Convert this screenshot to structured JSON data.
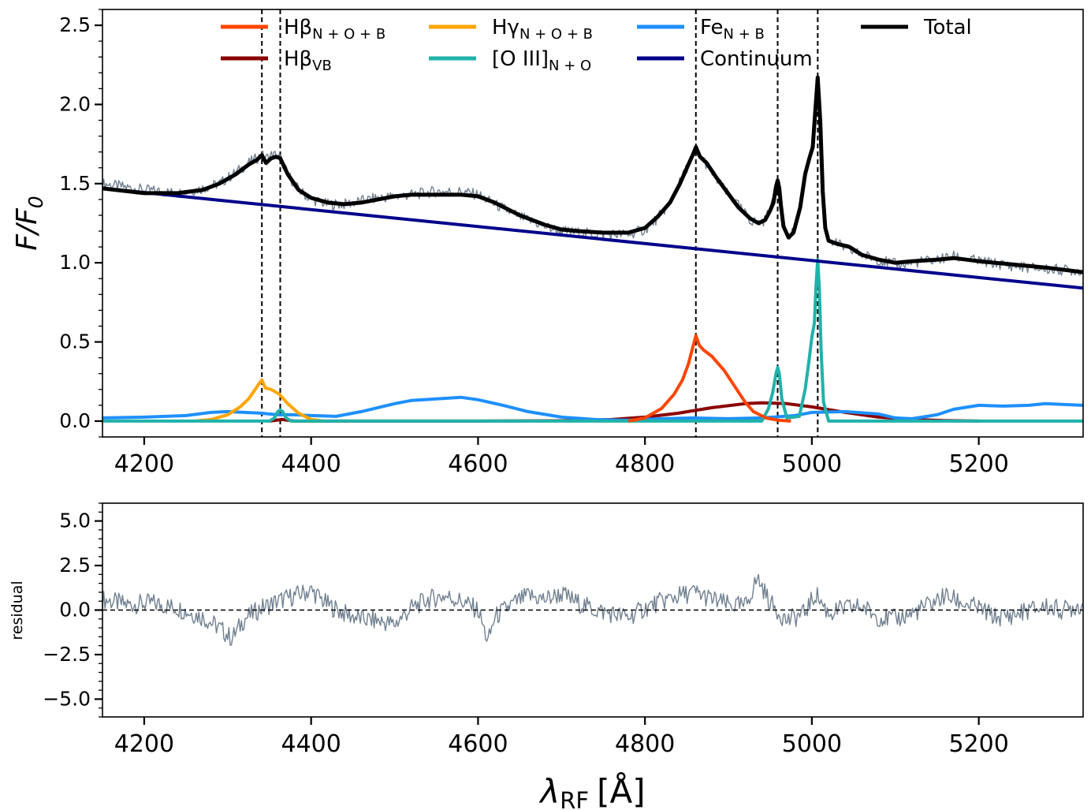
{
  "chart_data": [
    {
      "type": "line",
      "xlabel_main": "λ",
      "xlabel_sub": "RF",
      "xlabel_unit": "[Å]",
      "ylabel_main": "F/F",
      "ylabel_sub": "0",
      "xlim": [
        4150,
        5325
      ],
      "ylim": [
        -0.1,
        2.6
      ],
      "xticks": [
        4200,
        4400,
        4600,
        4800,
        5000,
        5200
      ],
      "yticks": [
        0.0,
        0.5,
        1.0,
        1.5,
        2.0,
        2.5
      ],
      "ytick_labels": [
        "0.0",
        "0.5",
        "1.0",
        "1.5",
        "2.0",
        "2.5"
      ],
      "grid": false,
      "legend_placement": "top",
      "vlines": [
        4341,
        4363,
        4861,
        4959,
        5007
      ],
      "series": [
        {
          "key": "hb_nob",
          "name": "Hβ",
          "name_sub": "N + O + B",
          "color": "#ff4500",
          "x": [
            4780,
            4800,
            4820,
            4835,
            4845,
            4852,
            4857,
            4861,
            4865,
            4870,
            4880,
            4895,
            4910,
            4920,
            4930,
            4945,
            4960,
            4975
          ],
          "y": [
            0.0,
            0.02,
            0.08,
            0.17,
            0.26,
            0.36,
            0.46,
            0.54,
            0.48,
            0.45,
            0.41,
            0.32,
            0.2,
            0.12,
            0.06,
            0.02,
            0.005,
            0.0
          ]
        },
        {
          "key": "hb_vb",
          "name": "Hβ",
          "name_sub": "VB",
          "color": "#8b0000",
          "x": [
            4350,
            4365,
            4380,
            4600,
            4700,
            4760,
            4800,
            4840,
            4880,
            4920,
            4940,
            4970,
            5000,
            5040,
            5080,
            5120,
            5160,
            5200
          ],
          "y": [
            0.0,
            0.01,
            0.0,
            0.0,
            0.002,
            0.01,
            0.025,
            0.05,
            0.085,
            0.11,
            0.115,
            0.11,
            0.09,
            0.055,
            0.025,
            0.01,
            0.003,
            0.0
          ]
        },
        {
          "key": "hg_nob",
          "name": "Hγ",
          "name_sub": "N + O + B",
          "color": "#ffa500",
          "x": [
            4260,
            4280,
            4300,
            4315,
            4325,
            4333,
            4338,
            4341,
            4345,
            4352,
            4362,
            4372,
            4385,
            4400,
            4415
          ],
          "y": [
            0.0,
            0.01,
            0.04,
            0.09,
            0.14,
            0.2,
            0.24,
            0.26,
            0.21,
            0.2,
            0.17,
            0.11,
            0.05,
            0.01,
            0.0
          ]
        },
        {
          "key": "oiii",
          "name": "[O III]",
          "name_sub": "N + O",
          "color": "#20b2aa",
          "x": [
            4150,
            4350,
            4356,
            4360,
            4363,
            4366,
            4370,
            4376,
            4940,
            4948,
            4953,
            4957,
            4959,
            4961,
            4964,
            4970,
            4985,
            4992,
            4996,
            5000,
            5003,
            5005,
            5007,
            5009,
            5011,
            5014,
            5020,
            5325
          ],
          "y": [
            0.0,
            0.0,
            0.02,
            0.06,
            0.07,
            0.06,
            0.02,
            0.0,
            0.0,
            0.08,
            0.18,
            0.3,
            0.34,
            0.3,
            0.14,
            0.02,
            0.03,
            0.2,
            0.36,
            0.53,
            0.62,
            0.86,
            1.02,
            0.84,
            0.45,
            0.12,
            0.0,
            0.0
          ]
        },
        {
          "key": "fe",
          "name": "Fe",
          "name_sub": "N + B",
          "color": "#1e90ff",
          "x": [
            4150,
            4200,
            4250,
            4280,
            4300,
            4320,
            4340,
            4360,
            4380,
            4400,
            4430,
            4460,
            4500,
            4520,
            4550,
            4580,
            4600,
            4630,
            4660,
            4700,
            4740,
            4780,
            4820,
            4860,
            4900,
            4940,
            4980,
            5000,
            5040,
            5080,
            5100,
            5120,
            5150,
            5170,
            5200,
            5230,
            5260,
            5280,
            5300,
            5325
          ],
          "y": [
            0.02,
            0.025,
            0.035,
            0.055,
            0.06,
            0.055,
            0.05,
            0.04,
            0.04,
            0.035,
            0.03,
            0.06,
            0.11,
            0.13,
            0.14,
            0.15,
            0.135,
            0.1,
            0.06,
            0.025,
            0.01,
            0.005,
            0.015,
            0.02,
            0.015,
            0.02,
            0.035,
            0.055,
            0.06,
            0.045,
            0.02,
            0.015,
            0.04,
            0.075,
            0.1,
            0.095,
            0.1,
            0.11,
            0.105,
            0.1
          ]
        },
        {
          "key": "continuum",
          "name": "Continuum",
          "color": "#00008b",
          "x": [
            4150,
            5325
          ],
          "y": [
            1.47,
            0.84
          ]
        },
        {
          "key": "total",
          "name": "Total",
          "color": "#000000",
          "x": [
            4150,
            4200,
            4240,
            4270,
            4290,
            4310,
            4325,
            4335,
            4341,
            4346,
            4352,
            4358,
            4363,
            4372,
            4385,
            4400,
            4420,
            4440,
            4460,
            4480,
            4500,
            4520,
            4550,
            4580,
            4600,
            4620,
            4650,
            4680,
            4700,
            4720,
            4750,
            4780,
            4800,
            4815,
            4830,
            4842,
            4852,
            4858,
            4861,
            4866,
            4874,
            4884,
            4898,
            4912,
            4926,
            4936,
            4944,
            4950,
            4954,
            4957,
            4959,
            4961,
            4963,
            4966,
            4972,
            4978,
            4986,
            4992,
            4997,
            5001,
            5004,
            5007,
            5010,
            5013,
            5016,
            5020,
            5030,
            5045,
            5060,
            5080,
            5100,
            5120,
            5150,
            5170,
            5200,
            5240,
            5280,
            5325
          ],
          "y": [
            1.47,
            1.44,
            1.44,
            1.46,
            1.5,
            1.56,
            1.62,
            1.65,
            1.68,
            1.63,
            1.66,
            1.67,
            1.66,
            1.56,
            1.46,
            1.41,
            1.38,
            1.37,
            1.38,
            1.4,
            1.42,
            1.43,
            1.43,
            1.43,
            1.42,
            1.38,
            1.3,
            1.24,
            1.21,
            1.2,
            1.19,
            1.19,
            1.22,
            1.29,
            1.38,
            1.5,
            1.62,
            1.69,
            1.73,
            1.67,
            1.63,
            1.55,
            1.45,
            1.35,
            1.28,
            1.25,
            1.27,
            1.33,
            1.38,
            1.48,
            1.52,
            1.47,
            1.36,
            1.23,
            1.16,
            1.19,
            1.35,
            1.56,
            1.66,
            1.73,
            1.95,
            2.17,
            1.9,
            1.45,
            1.22,
            1.14,
            1.12,
            1.1,
            1.05,
            1.02,
            1.0,
            1.01,
            1.02,
            1.03,
            1.01,
            0.99,
            0.97,
            0.94
          ]
        },
        {
          "key": "data",
          "name": "",
          "color": "#708090",
          "x": [
            4150,
            4200,
            4240,
            4270,
            4290,
            4310,
            4325,
            4335,
            4341,
            4346,
            4352,
            4358,
            4363,
            4372,
            4385,
            4400,
            4420,
            4440,
            4460,
            4480,
            4500,
            4520,
            4550,
            4580,
            4600,
            4620,
            4650,
            4680,
            4700,
            4720,
            4750,
            4780,
            4800,
            4815,
            4830,
            4842,
            4852,
            4858,
            4861,
            4866,
            4874,
            4884,
            4898,
            4912,
            4926,
            4936,
            4944,
            4950,
            4954,
            4957,
            4959,
            4961,
            4963,
            4966,
            4972,
            4978,
            4986,
            4992,
            4997,
            5001,
            5004,
            5007,
            5010,
            5013,
            5016,
            5020,
            5030,
            5045,
            5060,
            5080,
            5100,
            5120,
            5150,
            5170,
            5200,
            5240,
            5280,
            5325
          ],
          "y": [
            1.5,
            1.46,
            1.44,
            1.47,
            1.5,
            1.57,
            1.63,
            1.66,
            1.68,
            1.66,
            1.68,
            1.68,
            1.66,
            1.56,
            1.46,
            1.4,
            1.37,
            1.37,
            1.39,
            1.41,
            1.42,
            1.43,
            1.45,
            1.45,
            1.43,
            1.37,
            1.29,
            1.23,
            1.2,
            1.19,
            1.18,
            1.18,
            1.21,
            1.28,
            1.38,
            1.51,
            1.62,
            1.68,
            1.73,
            1.68,
            1.62,
            1.54,
            1.44,
            1.36,
            1.27,
            1.25,
            1.27,
            1.35,
            1.38,
            1.48,
            1.5,
            1.47,
            1.36,
            1.24,
            1.16,
            1.19,
            1.35,
            1.56,
            1.66,
            1.73,
            1.95,
            2.14,
            1.88,
            1.46,
            1.23,
            1.15,
            1.12,
            1.08,
            1.05,
            1.02,
            0.99,
            1.0,
            1.02,
            1.04,
            1.01,
            0.98,
            0.96,
            0.95
          ]
        }
      ]
    },
    {
      "type": "line",
      "xlabel": "",
      "ylabel": "residual",
      "xlim": [
        4150,
        5325
      ],
      "ylim": [
        -6.0,
        6.0
      ],
      "xticks": [
        4200,
        4400,
        4600,
        4800,
        5000,
        5200
      ],
      "yticks": [
        -5.0,
        -2.5,
        0.0,
        2.5,
        5.0
      ],
      "ytick_labels": [
        "−5.0",
        "−2.5",
        "0.0",
        "2.5",
        "5.0"
      ],
      "grid": false,
      "hline": 0.0,
      "series": [
        {
          "key": "residual",
          "name": "",
          "color": "#708090",
          "x": [
            4150,
            4180,
            4210,
            4240,
            4270,
            4290,
            4305,
            4320,
            4340,
            4360,
            4380,
            4400,
            4420,
            4440,
            4460,
            4480,
            4500,
            4520,
            4540,
            4560,
            4580,
            4600,
            4612,
            4620,
            4640,
            4660,
            4680,
            4700,
            4720,
            4740,
            4760,
            4780,
            4800,
            4820,
            4840,
            4860,
            4880,
            4900,
            4920,
            4935,
            4950,
            4970,
            4990,
            5005,
            5020,
            5040,
            5060,
            5080,
            5100,
            5120,
            5140,
            5160,
            5180,
            5200,
            5220,
            5240,
            5260,
            5280,
            5300,
            5325
          ],
          "y": [
            0.6,
            0.3,
            0.4,
            0.1,
            -0.4,
            -1.0,
            -1.6,
            -0.5,
            0.1,
            0.5,
            0.8,
            1.1,
            0.3,
            -0.2,
            -0.5,
            -0.6,
            -0.8,
            0.1,
            0.6,
            0.8,
            0.5,
            0.0,
            -1.8,
            -0.4,
            0.3,
            0.8,
            0.6,
            0.9,
            0.4,
            0.0,
            -0.2,
            -0.4,
            0.1,
            0.5,
            0.8,
            1.0,
            0.6,
            0.3,
            0.2,
            1.8,
            0.4,
            -0.6,
            -0.2,
            0.9,
            -0.2,
            0.1,
            0.2,
            -0.4,
            -0.5,
            -0.2,
            0.3,
            0.8,
            0.4,
            0.1,
            -0.4,
            -0.3,
            0.0,
            0.2,
            0.0,
            0.3
          ]
        }
      ]
    }
  ]
}
